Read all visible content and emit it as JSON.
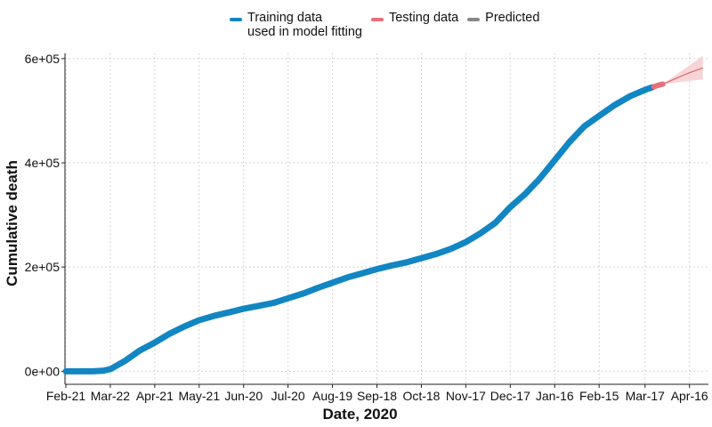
{
  "legend": {
    "training_line1": "Training data",
    "training_line2": "used in model fitting",
    "testing": "Testing data",
    "predicted": "Predicted"
  },
  "colors": {
    "training": "#1186c2",
    "testing": "#e8707a",
    "predicted": "#888888",
    "band": "#f6cfd3",
    "grid": "#c8c8c8"
  },
  "chart_data": {
    "type": "line",
    "xlabel": "Date, 2020",
    "ylabel": "Cumulative death",
    "x_ticks": [
      "Feb-21",
      "Mar-22",
      "Apr-21",
      "May-21",
      "Jun-20",
      "Jul-20",
      "Aug-19",
      "Sep-18",
      "Oct-18",
      "Nov-17",
      "Dec-17",
      "Jan-16",
      "Feb-15",
      "Mar-17",
      "Apr-16"
    ],
    "y_ticks": [
      "0e+00",
      "2e+05",
      "4e+05",
      "6e+05"
    ],
    "ylim": [
      -25000,
      610000
    ],
    "grid": "dotted",
    "series": [
      {
        "name": "Training data used in model fitting",
        "points": [
          [
            "Feb-21",
            0
          ],
          [
            "Mar-10",
            0
          ],
          [
            "Mar-17",
            1000
          ],
          [
            "Mar-22",
            4000
          ],
          [
            "Apr-01",
            20000
          ],
          [
            "Apr-11",
            40000
          ],
          [
            "Apr-21",
            55000
          ],
          [
            "May-01",
            72000
          ],
          [
            "May-11",
            86000
          ],
          [
            "May-21",
            98000
          ],
          [
            "Jun-01",
            107000
          ],
          [
            "Jun-10",
            113000
          ],
          [
            "Jun-20",
            120000
          ],
          [
            "Jul-01",
            126000
          ],
          [
            "Jul-10",
            131000
          ],
          [
            "Jul-20",
            140000
          ],
          [
            "Jul-31",
            150000
          ],
          [
            "Aug-09",
            160000
          ],
          [
            "Aug-19",
            170000
          ],
          [
            "Aug-29",
            180000
          ],
          [
            "Sep-08",
            188000
          ],
          [
            "Sep-18",
            196000
          ],
          [
            "Sep-28",
            203000
          ],
          [
            "Oct-08",
            209000
          ],
          [
            "Oct-18",
            217000
          ],
          [
            "Oct-28",
            225000
          ],
          [
            "Nov-07",
            235000
          ],
          [
            "Nov-17",
            248000
          ],
          [
            "Nov-27",
            265000
          ],
          [
            "Dec-07",
            285000
          ],
          [
            "Dec-17",
            315000
          ],
          [
            "Dec-27",
            340000
          ],
          [
            "Jan-06",
            370000
          ],
          [
            "Jan-16",
            405000
          ],
          [
            "Jan-26",
            440000
          ],
          [
            "Feb-05",
            470000
          ],
          [
            "Feb-15",
            490000
          ],
          [
            "Feb-25",
            510000
          ],
          [
            "Mar-07",
            528000
          ],
          [
            "Mar-17",
            540000
          ],
          [
            "Mar-22",
            545000
          ]
        ]
      },
      {
        "name": "Testing data",
        "points": [
          [
            "Mar-23",
            546000
          ],
          [
            "Mar-26",
            549000
          ],
          [
            "Mar-29",
            551000
          ]
        ]
      },
      {
        "name": "Predicted",
        "points": [
          [
            "Mar-29",
            551000
          ],
          [
            "Apr-16",
            573000
          ],
          [
            "Apr-25",
            582000
          ]
        ],
        "upper": [
          605000
        ],
        "lower": [
          560000
        ]
      }
    ]
  }
}
